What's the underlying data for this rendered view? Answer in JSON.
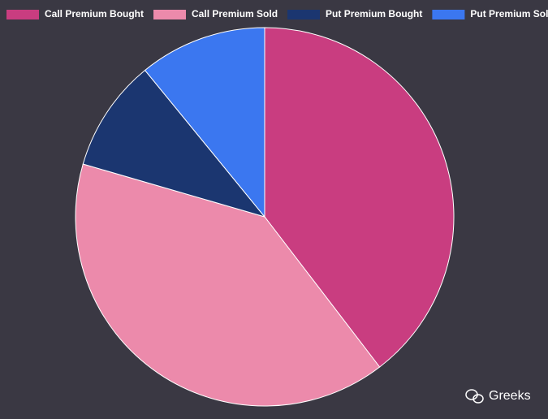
{
  "chart_data": {
    "type": "pie",
    "categories": [
      "Call Premium Bought",
      "Call Premium Sold",
      "Put Premium Bought",
      "Put Premium Sold"
    ],
    "values": [
      39.6,
      39.9,
      9.6,
      10.9
    ],
    "colors": [
      "#c93d80",
      "#ec8aab",
      "#1b3670",
      "#3b77f0"
    ],
    "legend": "top",
    "watermark": "Greeks"
  }
}
